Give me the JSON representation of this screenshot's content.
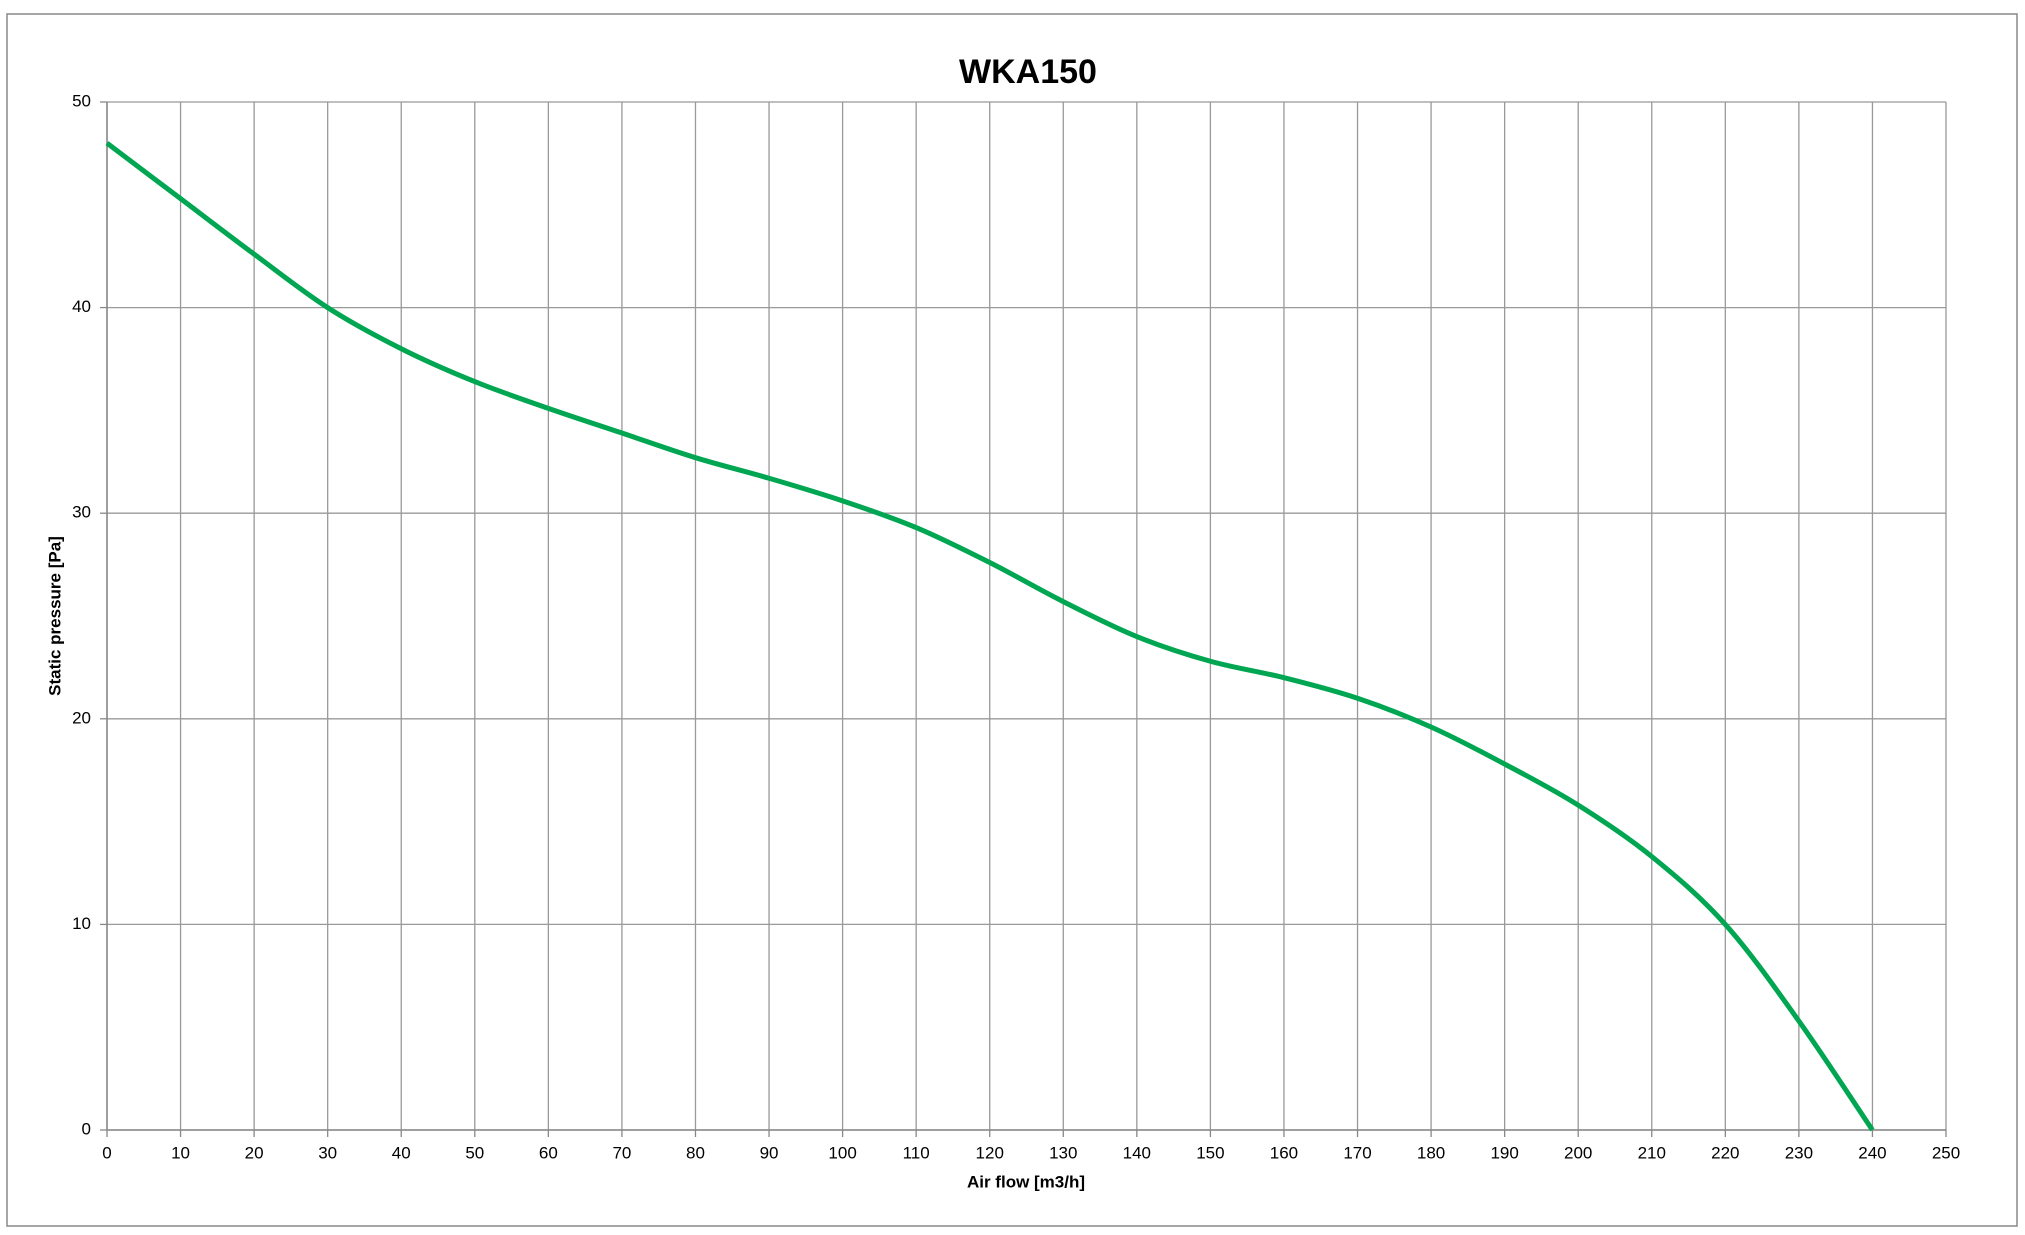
{
  "chart_data": {
    "type": "line",
    "title": "WKA150",
    "x_label": "Air flow [m3/h]",
    "y_label": "Static pressure [Pa]",
    "x": [
      0,
      10,
      20,
      30,
      40,
      50,
      60,
      70,
      80,
      90,
      100,
      110,
      120,
      130,
      140,
      150,
      160,
      170,
      180,
      190,
      200,
      210,
      220,
      230,
      240
    ],
    "series": [
      {
        "name": "WKA150",
        "color": "#00a651",
        "values": [
          48,
          45.3,
          42.6,
          40.0,
          38.0,
          36.4,
          35.1,
          33.9,
          32.7,
          31.7,
          30.6,
          29.3,
          27.6,
          25.7,
          24.0,
          22.8,
          22.0,
          21.0,
          19.6,
          17.8,
          15.8,
          13.3,
          10.0,
          5.3,
          0
        ]
      }
    ],
    "xlim": [
      0,
      250
    ],
    "xticks": [
      0,
      10,
      20,
      30,
      40,
      50,
      60,
      70,
      80,
      90,
      100,
      110,
      120,
      130,
      140,
      150,
      160,
      170,
      180,
      190,
      200,
      210,
      220,
      230,
      240,
      250
    ],
    "ylim": [
      0,
      50
    ],
    "yticks": [
      0,
      10,
      20,
      30,
      40,
      50
    ],
    "grid": true
  }
}
